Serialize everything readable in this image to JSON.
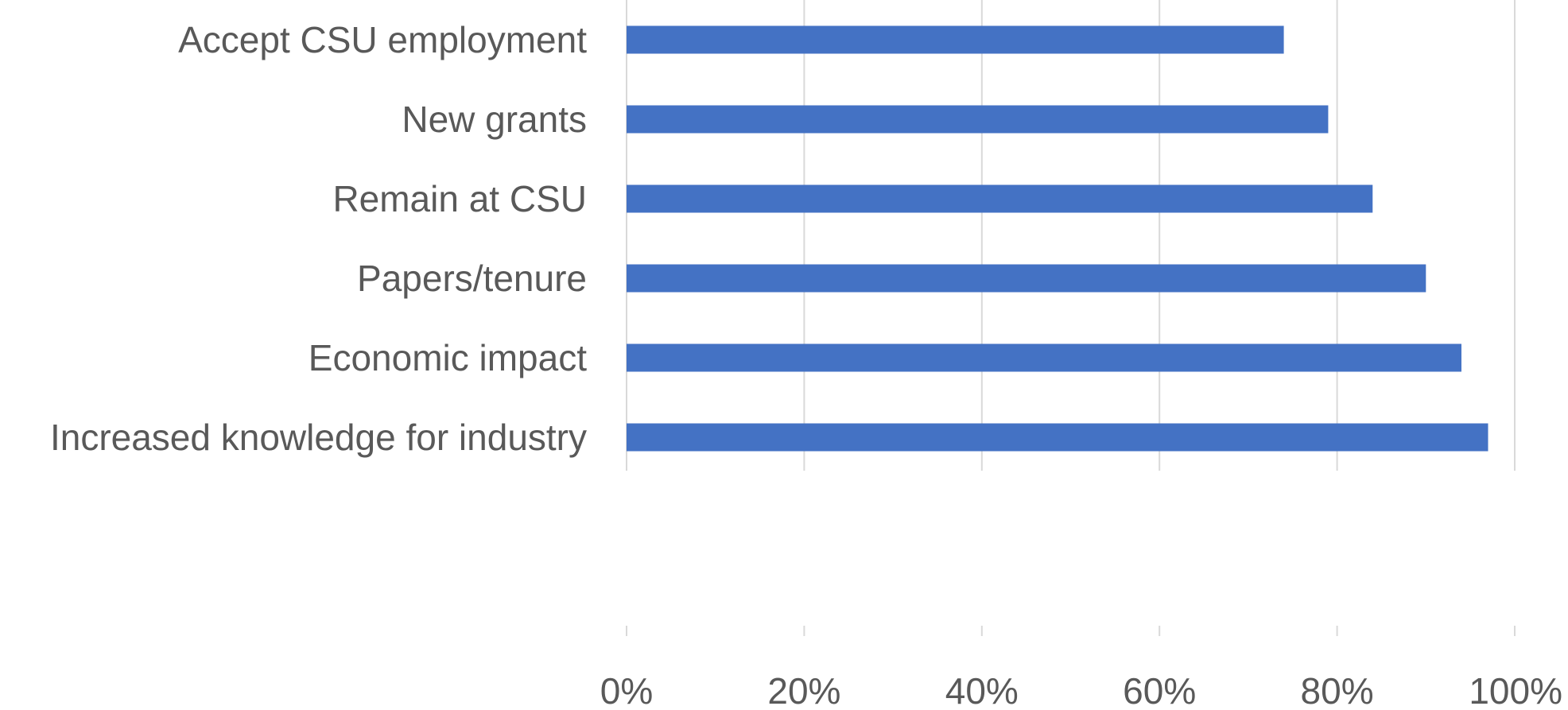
{
  "chart_data": {
    "type": "bar",
    "orientation": "horizontal",
    "categories": [
      "Accept CSU employment",
      "New grants",
      "Remain at CSU",
      "Papers/tenure",
      "Economic impact",
      "Increased knowledge for industry"
    ],
    "values": [
      74,
      79,
      84,
      90,
      94,
      97
    ],
    "xlim": [
      0,
      100
    ],
    "x_ticks": [
      "0%",
      "20%",
      "40%",
      "60%",
      "80%",
      "100%"
    ],
    "grid": true,
    "bar_color": "#4472C4",
    "gridline_color": "#D9D9D9",
    "text_color": "#595959"
  }
}
